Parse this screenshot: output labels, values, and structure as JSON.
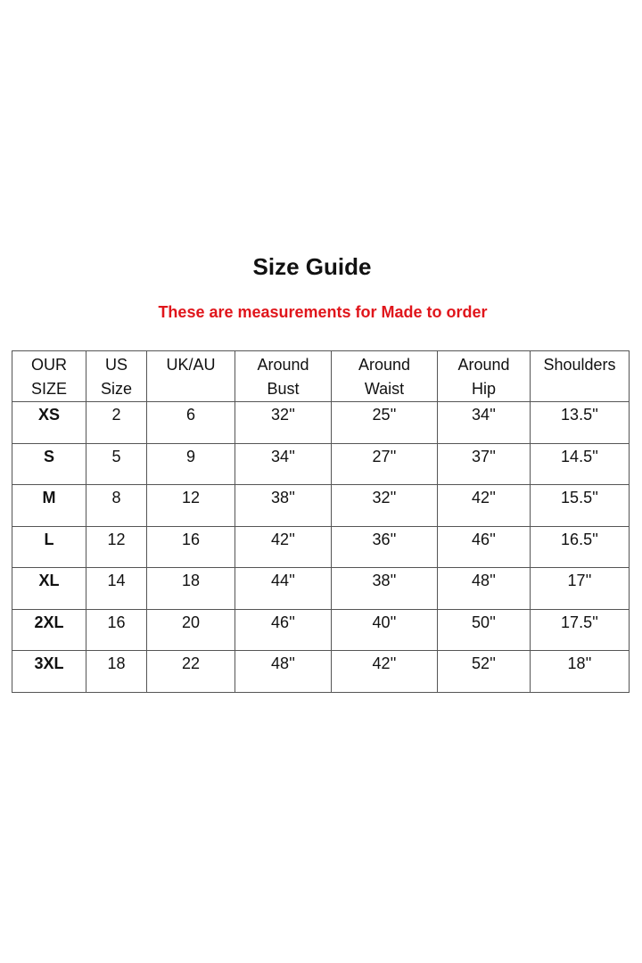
{
  "title": "Size Guide",
  "subtitle": "These are measurements for Made to order",
  "table": {
    "headers": [
      [
        "OUR",
        "SIZE"
      ],
      [
        "US",
        "Size"
      ],
      [
        "UK/AU",
        ""
      ],
      [
        "Around",
        "Bust"
      ],
      [
        "Around",
        "Waist"
      ],
      [
        "Around",
        "Hip"
      ],
      [
        "Shoulders",
        ""
      ]
    ],
    "rows": [
      [
        "XS",
        "2",
        "6",
        "32''",
        "25''",
        "34''",
        "13.5''"
      ],
      [
        "S",
        "5",
        "9",
        "34''",
        "27''",
        "37''",
        "14.5''"
      ],
      [
        "M",
        "8",
        "12",
        "38''",
        "32''",
        "42''",
        "15.5''"
      ],
      [
        "L",
        "12",
        "16",
        "42''",
        "36''",
        "46''",
        "16.5''"
      ],
      [
        "XL",
        "14",
        "18",
        "44''",
        "38''",
        "48''",
        "17''"
      ],
      [
        "2XL",
        "16",
        "20",
        "46''",
        "40''",
        "50''",
        "17.5''"
      ],
      [
        "3XL",
        "18",
        "22",
        "48''",
        "42''",
        "52''",
        "18''"
      ]
    ]
  },
  "colors": {
    "subtitle": "#e0151b",
    "border": "#555555"
  }
}
